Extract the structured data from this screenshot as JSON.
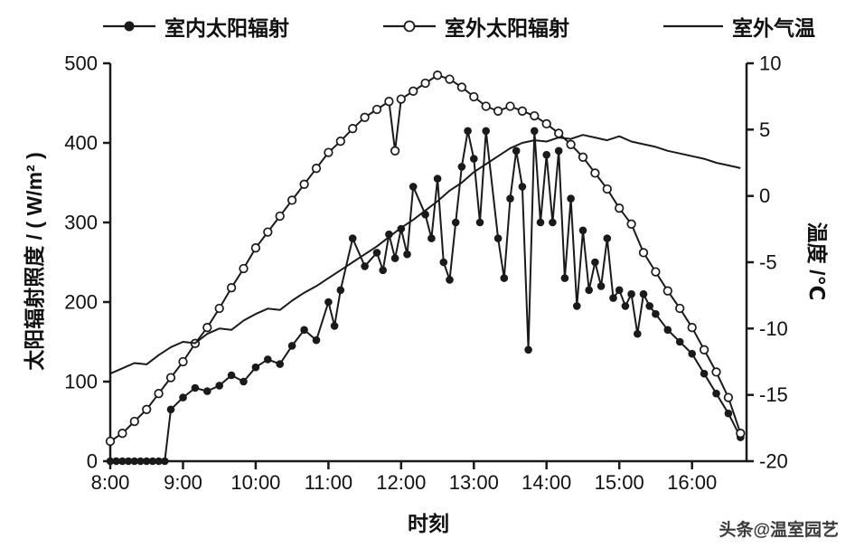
{
  "legend": {
    "items": [
      {
        "label": "室内太阳辐射",
        "marker": "filled-circle"
      },
      {
        "label": "室外太阳辐射",
        "marker": "open-circle"
      },
      {
        "label": "室外气温",
        "marker": "line"
      }
    ]
  },
  "watermark": "头条@温室园艺",
  "axes": {
    "ylabel_left": "太阳辐射照度 / ( W/m² )",
    "ylabel_right": "温度 /℃",
    "xlabel": "时刻"
  },
  "chart_data": {
    "type": "line",
    "title": "",
    "xlabel": "时刻",
    "ylabel_left": "太阳辐射照度 / ( W/m² )",
    "ylabel_right": "温度 /℃",
    "x_domain_minutes": [
      480,
      1005
    ],
    "ylim_left": [
      0,
      500
    ],
    "ylim_right": [
      -20,
      10
    ],
    "grid": false,
    "legend_position": "top",
    "x_ticks": [
      {
        "minute": 480,
        "label": "8:00"
      },
      {
        "minute": 540,
        "label": "9:00"
      },
      {
        "minute": 600,
        "label": "10:00"
      },
      {
        "minute": 660,
        "label": "11:00"
      },
      {
        "minute": 720,
        "label": "12:00"
      },
      {
        "minute": 780,
        "label": "13:00"
      },
      {
        "minute": 840,
        "label": "14:00"
      },
      {
        "minute": 900,
        "label": "15:00"
      },
      {
        "minute": 960,
        "label": "16:00"
      }
    ],
    "yticks_left": [
      0,
      100,
      200,
      300,
      400,
      500
    ],
    "yticks_right": [
      -20,
      -15,
      -10,
      -5,
      0,
      5,
      10
    ],
    "series": [
      {
        "id": "indoor",
        "name": "室内太阳辐射",
        "axis": "left",
        "marker": "filled",
        "times": [
          480,
          485,
          490,
          495,
          500,
          505,
          510,
          515,
          520,
          525,
          530,
          540,
          550,
          560,
          570,
          580,
          590,
          600,
          610,
          620,
          630,
          640,
          650,
          660,
          665,
          670,
          680,
          690,
          700,
          705,
          710,
          715,
          720,
          725,
          730,
          740,
          745,
          750,
          755,
          760,
          765,
          770,
          775,
          780,
          785,
          790,
          800,
          805,
          810,
          815,
          820,
          825,
          830,
          835,
          840,
          845,
          850,
          855,
          860,
          865,
          870,
          875,
          880,
          885,
          890,
          895,
          900,
          905,
          910,
          915,
          920,
          925,
          930,
          940,
          950,
          960,
          970,
          980,
          990,
          1000
        ],
        "values": [
          0,
          0,
          0,
          0,
          0,
          0,
          0,
          0,
          0,
          0,
          65,
          80,
          92,
          88,
          95,
          108,
          100,
          118,
          128,
          122,
          145,
          165,
          152,
          200,
          170,
          215,
          280,
          245,
          262,
          240,
          285,
          255,
          292,
          260,
          345,
          310,
          280,
          355,
          250,
          228,
          300,
          370,
          415,
          380,
          300,
          415,
          280,
          230,
          330,
          390,
          345,
          140,
          415,
          300,
          385,
          300,
          390,
          230,
          330,
          195,
          290,
          215,
          250,
          220,
          280,
          205,
          215,
          195,
          210,
          160,
          210,
          195,
          185,
          165,
          150,
          135,
          110,
          85,
          60,
          30
        ]
      },
      {
        "id": "outdoor",
        "name": "室外太阳辐射",
        "axis": "left",
        "marker": "open",
        "times": [
          480,
          490,
          500,
          510,
          520,
          530,
          540,
          550,
          560,
          570,
          580,
          590,
          600,
          610,
          620,
          630,
          640,
          650,
          660,
          670,
          680,
          690,
          700,
          710,
          715,
          720,
          730,
          740,
          750,
          760,
          770,
          780,
          790,
          800,
          810,
          820,
          830,
          840,
          850,
          860,
          870,
          880,
          890,
          900,
          910,
          920,
          930,
          940,
          950,
          960,
          970,
          980,
          990,
          1000
        ],
        "values": [
          25,
          35,
          50,
          65,
          85,
          105,
          125,
          148,
          168,
          192,
          218,
          242,
          268,
          288,
          308,
          328,
          348,
          368,
          388,
          402,
          418,
          432,
          442,
          452,
          390,
          455,
          465,
          475,
          485,
          480,
          470,
          458,
          446,
          440,
          446,
          440,
          434,
          424,
          412,
          398,
          382,
          362,
          342,
          318,
          298,
          262,
          238,
          214,
          192,
          168,
          140,
          112,
          80,
          35
        ]
      },
      {
        "id": "temp",
        "name": "室外气温",
        "axis": "right",
        "marker": "none",
        "times": [
          480,
          490,
          500,
          510,
          520,
          530,
          540,
          550,
          560,
          570,
          580,
          590,
          600,
          610,
          620,
          630,
          640,
          650,
          660,
          670,
          680,
          690,
          700,
          710,
          720,
          730,
          740,
          750,
          760,
          770,
          780,
          790,
          800,
          810,
          820,
          830,
          840,
          850,
          860,
          870,
          880,
          890,
          900,
          910,
          920,
          930,
          940,
          950,
          960,
          970,
          980,
          990,
          1000
        ],
        "values": [
          -13.4,
          -13.0,
          -12.6,
          -12.7,
          -12.0,
          -11.4,
          -11.0,
          -11.1,
          -10.4,
          -10.0,
          -10.1,
          -9.4,
          -8.9,
          -8.5,
          -8.6,
          -7.9,
          -7.3,
          -6.8,
          -6.2,
          -5.6,
          -5.0,
          -4.4,
          -3.8,
          -3.1,
          -2.4,
          -1.8,
          -1.1,
          -0.4,
          0.4,
          1.0,
          1.8,
          2.4,
          3.0,
          3.6,
          4.0,
          4.2,
          4.1,
          4.4,
          4.3,
          4.6,
          4.4,
          4.2,
          4.5,
          4.1,
          3.9,
          3.7,
          3.4,
          3.2,
          3.0,
          2.8,
          2.5,
          2.3,
          2.1
        ]
      }
    ]
  }
}
